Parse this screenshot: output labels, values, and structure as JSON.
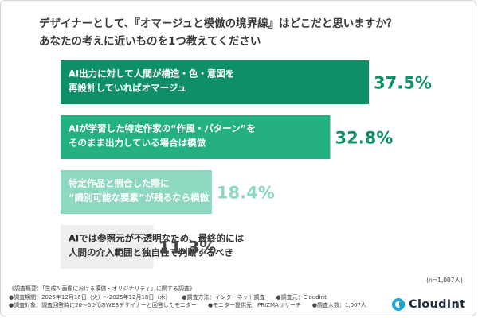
{
  "question": {
    "line1": "デザイナーとして、『オマージュと模倣の境界線』はどこだと思いますか？",
    "line2": "あなたの考えに近いものを1つ教えてください"
  },
  "chart_data": {
    "type": "bar",
    "orientation": "horizontal",
    "categories": [
      [
        "AI出力に対して人間が構造・色・意図を",
        "再設計していればオマージュ"
      ],
      [
        "AIが学習した特定作家の“作風・パターン”を",
        "そのまま出力している場合は模倣"
      ],
      [
        "特定作品と照合した際に",
        "“識別可能な要素”が残るなら模倣"
      ],
      [
        "AIでは参照元が不透明なため、最終的には",
        "人間の介入範囲と独自性で判断するべき"
      ]
    ],
    "values": [
      37.5,
      32.8,
      18.4,
      11.3
    ],
    "value_labels": [
      "37.5%",
      "32.8%",
      "18.4%",
      "11.3%"
    ],
    "colors": {
      "bars": [
        "#0f8f68",
        "#25b082",
        "#8ed9bd",
        "#eeeeee"
      ],
      "bar_text": [
        "#ffffff",
        "#ffffff",
        "#ffffff",
        "#333333"
      ],
      "value_text": [
        "#0f8f68",
        "#0f8f68",
        "#8ed9bd",
        "#444444"
      ]
    },
    "xlim": [
      0,
      37.5
    ]
  },
  "sample_size": "(n=1,007人)",
  "footer": {
    "survey_title": "《調査概要：「生成AI画像における模倣・オリジナリティ」に関する調査》",
    "period": "●調査期間：2025年12月16日（火）〜2025年12月18日（木）",
    "method": "●調査方法：インターネット調査",
    "organizer": "●調査元：CloudInt",
    "target": "●調査対象：調査回答時に20〜50代のWEBデザイナーと回答したモニター",
    "provider": "●モニター提供元：PRIZMAリサーチ",
    "count": "●調査人数：1,007人"
  },
  "logo": {
    "text": "CloudInt"
  }
}
